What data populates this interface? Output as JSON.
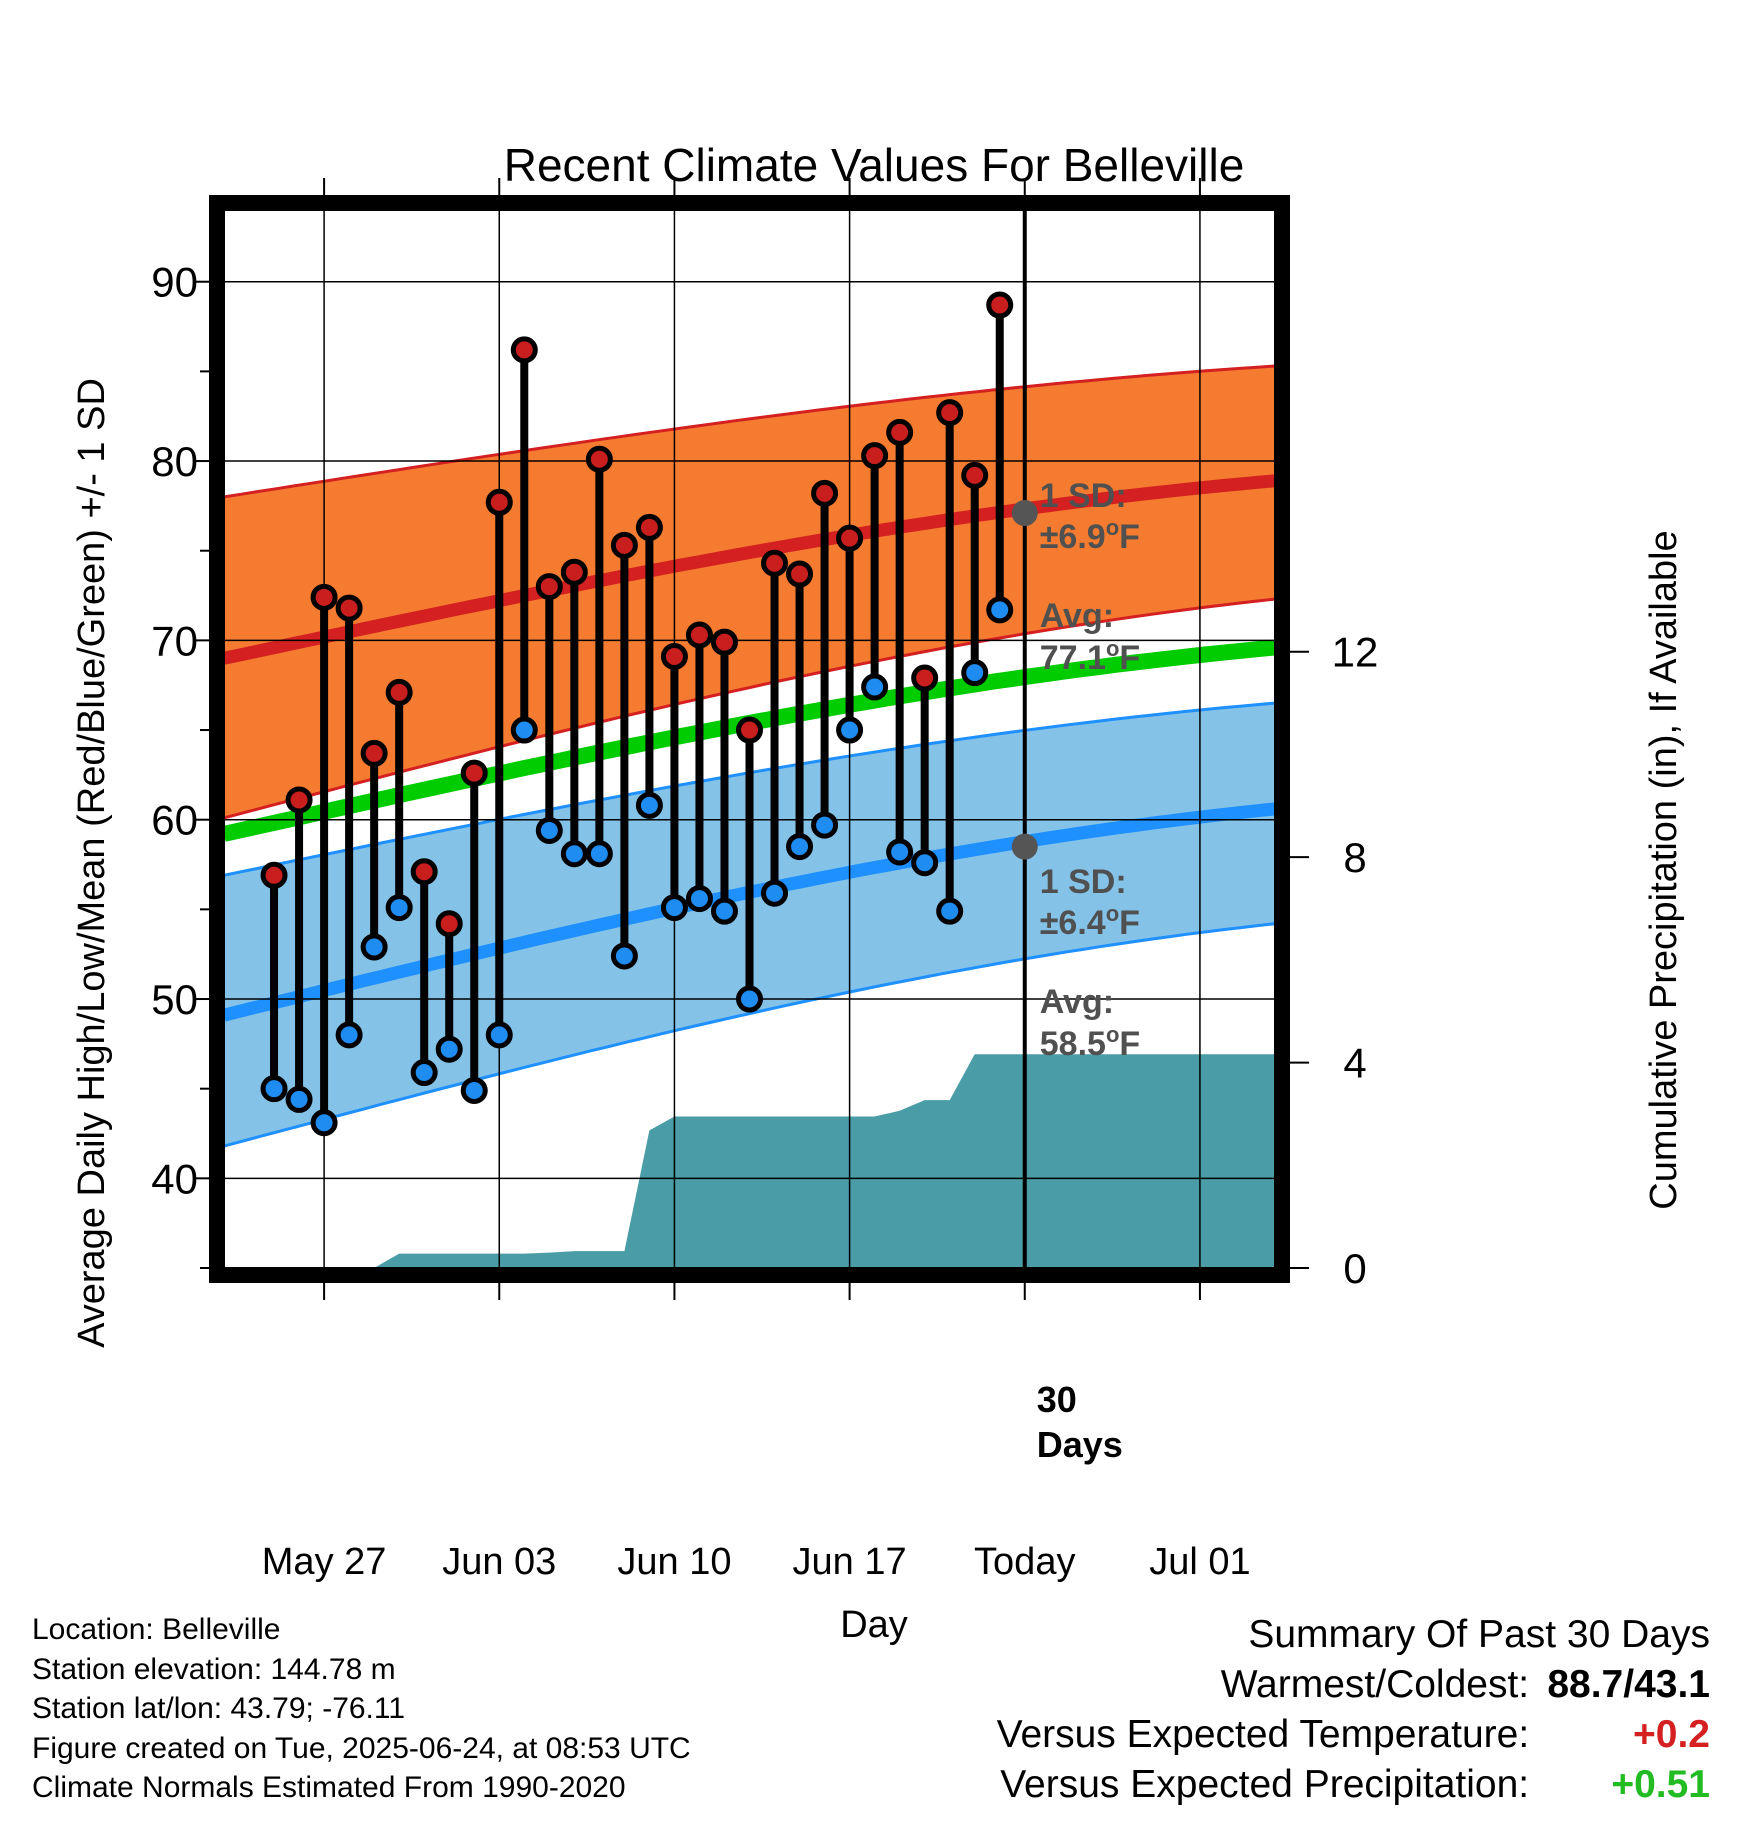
{
  "chart_data": {
    "type": "line",
    "title": "Recent Climate Values For Belleville",
    "xlabel": "Day",
    "ylabel": "Average Daily High/Low/Mean (Red/Blue/Green) +/- 1 SD",
    "y2label": "Cumulative Precipitation (in), If Available",
    "ylim": [
      35,
      94
    ],
    "y2lim": [
      0,
      20.6
    ],
    "xlim": [
      "2025-05-23",
      "2025-07-04"
    ],
    "yticks": [
      40,
      50,
      60,
      70,
      80,
      90
    ],
    "y2ticks": [
      0,
      4,
      8,
      12
    ],
    "xticks": [
      {
        "date": "2025-05-27",
        "label": "May 27"
      },
      {
        "date": "2025-06-03",
        "label": "Jun 03"
      },
      {
        "date": "2025-06-10",
        "label": "Jun 10"
      },
      {
        "date": "2025-06-17",
        "label": "Jun 17"
      },
      {
        "date": "2025-06-24",
        "label": "Today"
      },
      {
        "date": "2025-07-01",
        "label": "Jul 01"
      }
    ],
    "grid": true,
    "colors": {
      "high_band": "#F47B30",
      "high_mean": "#D42020",
      "low_band": "#84C2E8",
      "low_mean": "#1E90FF",
      "normal_mean": "#00CC00",
      "precip": "#4A9CA6",
      "high_marker": "#C81E1E",
      "low_marker": "#1E8CF0",
      "annotation": "#505050"
    },
    "normals": {
      "dates": [
        "2025-05-23",
        "2025-07-04"
      ],
      "high_mean": [
        69.0,
        78.9
      ],
      "high_upper": [
        78.0,
        85.3
      ],
      "high_lower": [
        60.1,
        72.3
      ],
      "low_mean": [
        49.1,
        60.6
      ],
      "low_upper": [
        56.9,
        66.5
      ],
      "low_lower": [
        41.8,
        54.2
      ],
      "mean": [
        59.2,
        69.6
      ]
    },
    "daily": {
      "dates": [
        "2025-05-25",
        "2025-05-26",
        "2025-05-27",
        "2025-05-28",
        "2025-05-29",
        "2025-05-30",
        "2025-05-31",
        "2025-06-01",
        "2025-06-02",
        "2025-06-03",
        "2025-06-04",
        "2025-06-05",
        "2025-06-06",
        "2025-06-07",
        "2025-06-08",
        "2025-06-09",
        "2025-06-10",
        "2025-06-11",
        "2025-06-12",
        "2025-06-13",
        "2025-06-14",
        "2025-06-15",
        "2025-06-16",
        "2025-06-17",
        "2025-06-18",
        "2025-06-19",
        "2025-06-20",
        "2025-06-21",
        "2025-06-22",
        "2025-06-23"
      ],
      "high": [
        56.9,
        61.1,
        72.4,
        71.8,
        63.7,
        67.1,
        57.1,
        54.2,
        62.6,
        77.7,
        86.2,
        73.0,
        73.8,
        80.1,
        75.3,
        76.3,
        69.1,
        70.3,
        69.9,
        65.0,
        74.3,
        73.7,
        78.2,
        75.7,
        80.3,
        81.6,
        67.9,
        82.7,
        79.2,
        88.7
      ],
      "low": [
        45.0,
        44.4,
        43.1,
        48.0,
        52.9,
        55.1,
        45.9,
        47.2,
        44.9,
        48.0,
        65.0,
        59.4,
        58.1,
        58.1,
        52.4,
        60.8,
        55.1,
        55.6,
        54.9,
        50.0,
        55.9,
        58.5,
        59.7,
        65.0,
        67.4,
        58.2,
        57.6,
        54.9,
        68.2,
        71.7
      ]
    },
    "precip": {
      "dates": [
        "2025-05-23",
        "2025-05-29",
        "2025-05-30",
        "2025-05-31",
        "2025-06-01",
        "2025-06-02",
        "2025-06-03",
        "2025-06-04",
        "2025-06-05",
        "2025-06-06",
        "2025-06-07",
        "2025-06-08",
        "2025-06-09",
        "2025-06-10",
        "2025-06-11",
        "2025-06-12",
        "2025-06-13",
        "2025-06-14",
        "2025-06-15",
        "2025-06-16",
        "2025-06-17",
        "2025-06-18",
        "2025-06-19",
        "2025-06-20",
        "2025-06-21",
        "2025-06-22",
        "2025-06-23",
        "2025-07-04"
      ],
      "values": [
        0,
        0,
        0.28,
        0.28,
        0.28,
        0.28,
        0.28,
        0.28,
        0.3,
        0.33,
        0.33,
        0.33,
        2.68,
        2.95,
        2.95,
        2.95,
        2.95,
        2.95,
        2.95,
        2.95,
        2.95,
        2.95,
        3.06,
        3.27,
        3.27,
        4.16,
        4.16,
        4.16
      ]
    },
    "annotations": {
      "high_sd_label": "1 SD:",
      "high_sd_value": "±6.9",
      "high_avg_label": "Avg:",
      "high_avg_value": "77.1",
      "low_sd_label": "1 SD:",
      "low_sd_value": "±6.4",
      "low_avg_label": "Avg:",
      "low_avg_value": "58.5",
      "deg_sup": "o",
      "unit": "F",
      "today_label_1": "30",
      "today_label_2": "Days",
      "today_high_avg": 77.1,
      "today_low_avg": 58.5
    }
  },
  "info": {
    "location": "Location: Belleville",
    "elevation": "Station elevation: 144.78 m",
    "latlon": "Station lat/lon: 43.79; -76.11",
    "created": "Figure created on Tue, 2025-06-24, at 08:53 UTC",
    "normals": "Climate Normals Estimated From 1990-2020"
  },
  "summary": {
    "title": "Summary Of Past 30 Days",
    "warmest_label": "Warmest/Coldest:",
    "warmest_value": "88.7/43.1",
    "temp_label": "Versus Expected Temperature:",
    "temp_value": "+0.2",
    "temp_color": "#D42020",
    "precip_label": "Versus Expected Precipitation:",
    "precip_value": "+0.51",
    "precip_color": "#22BB22"
  }
}
